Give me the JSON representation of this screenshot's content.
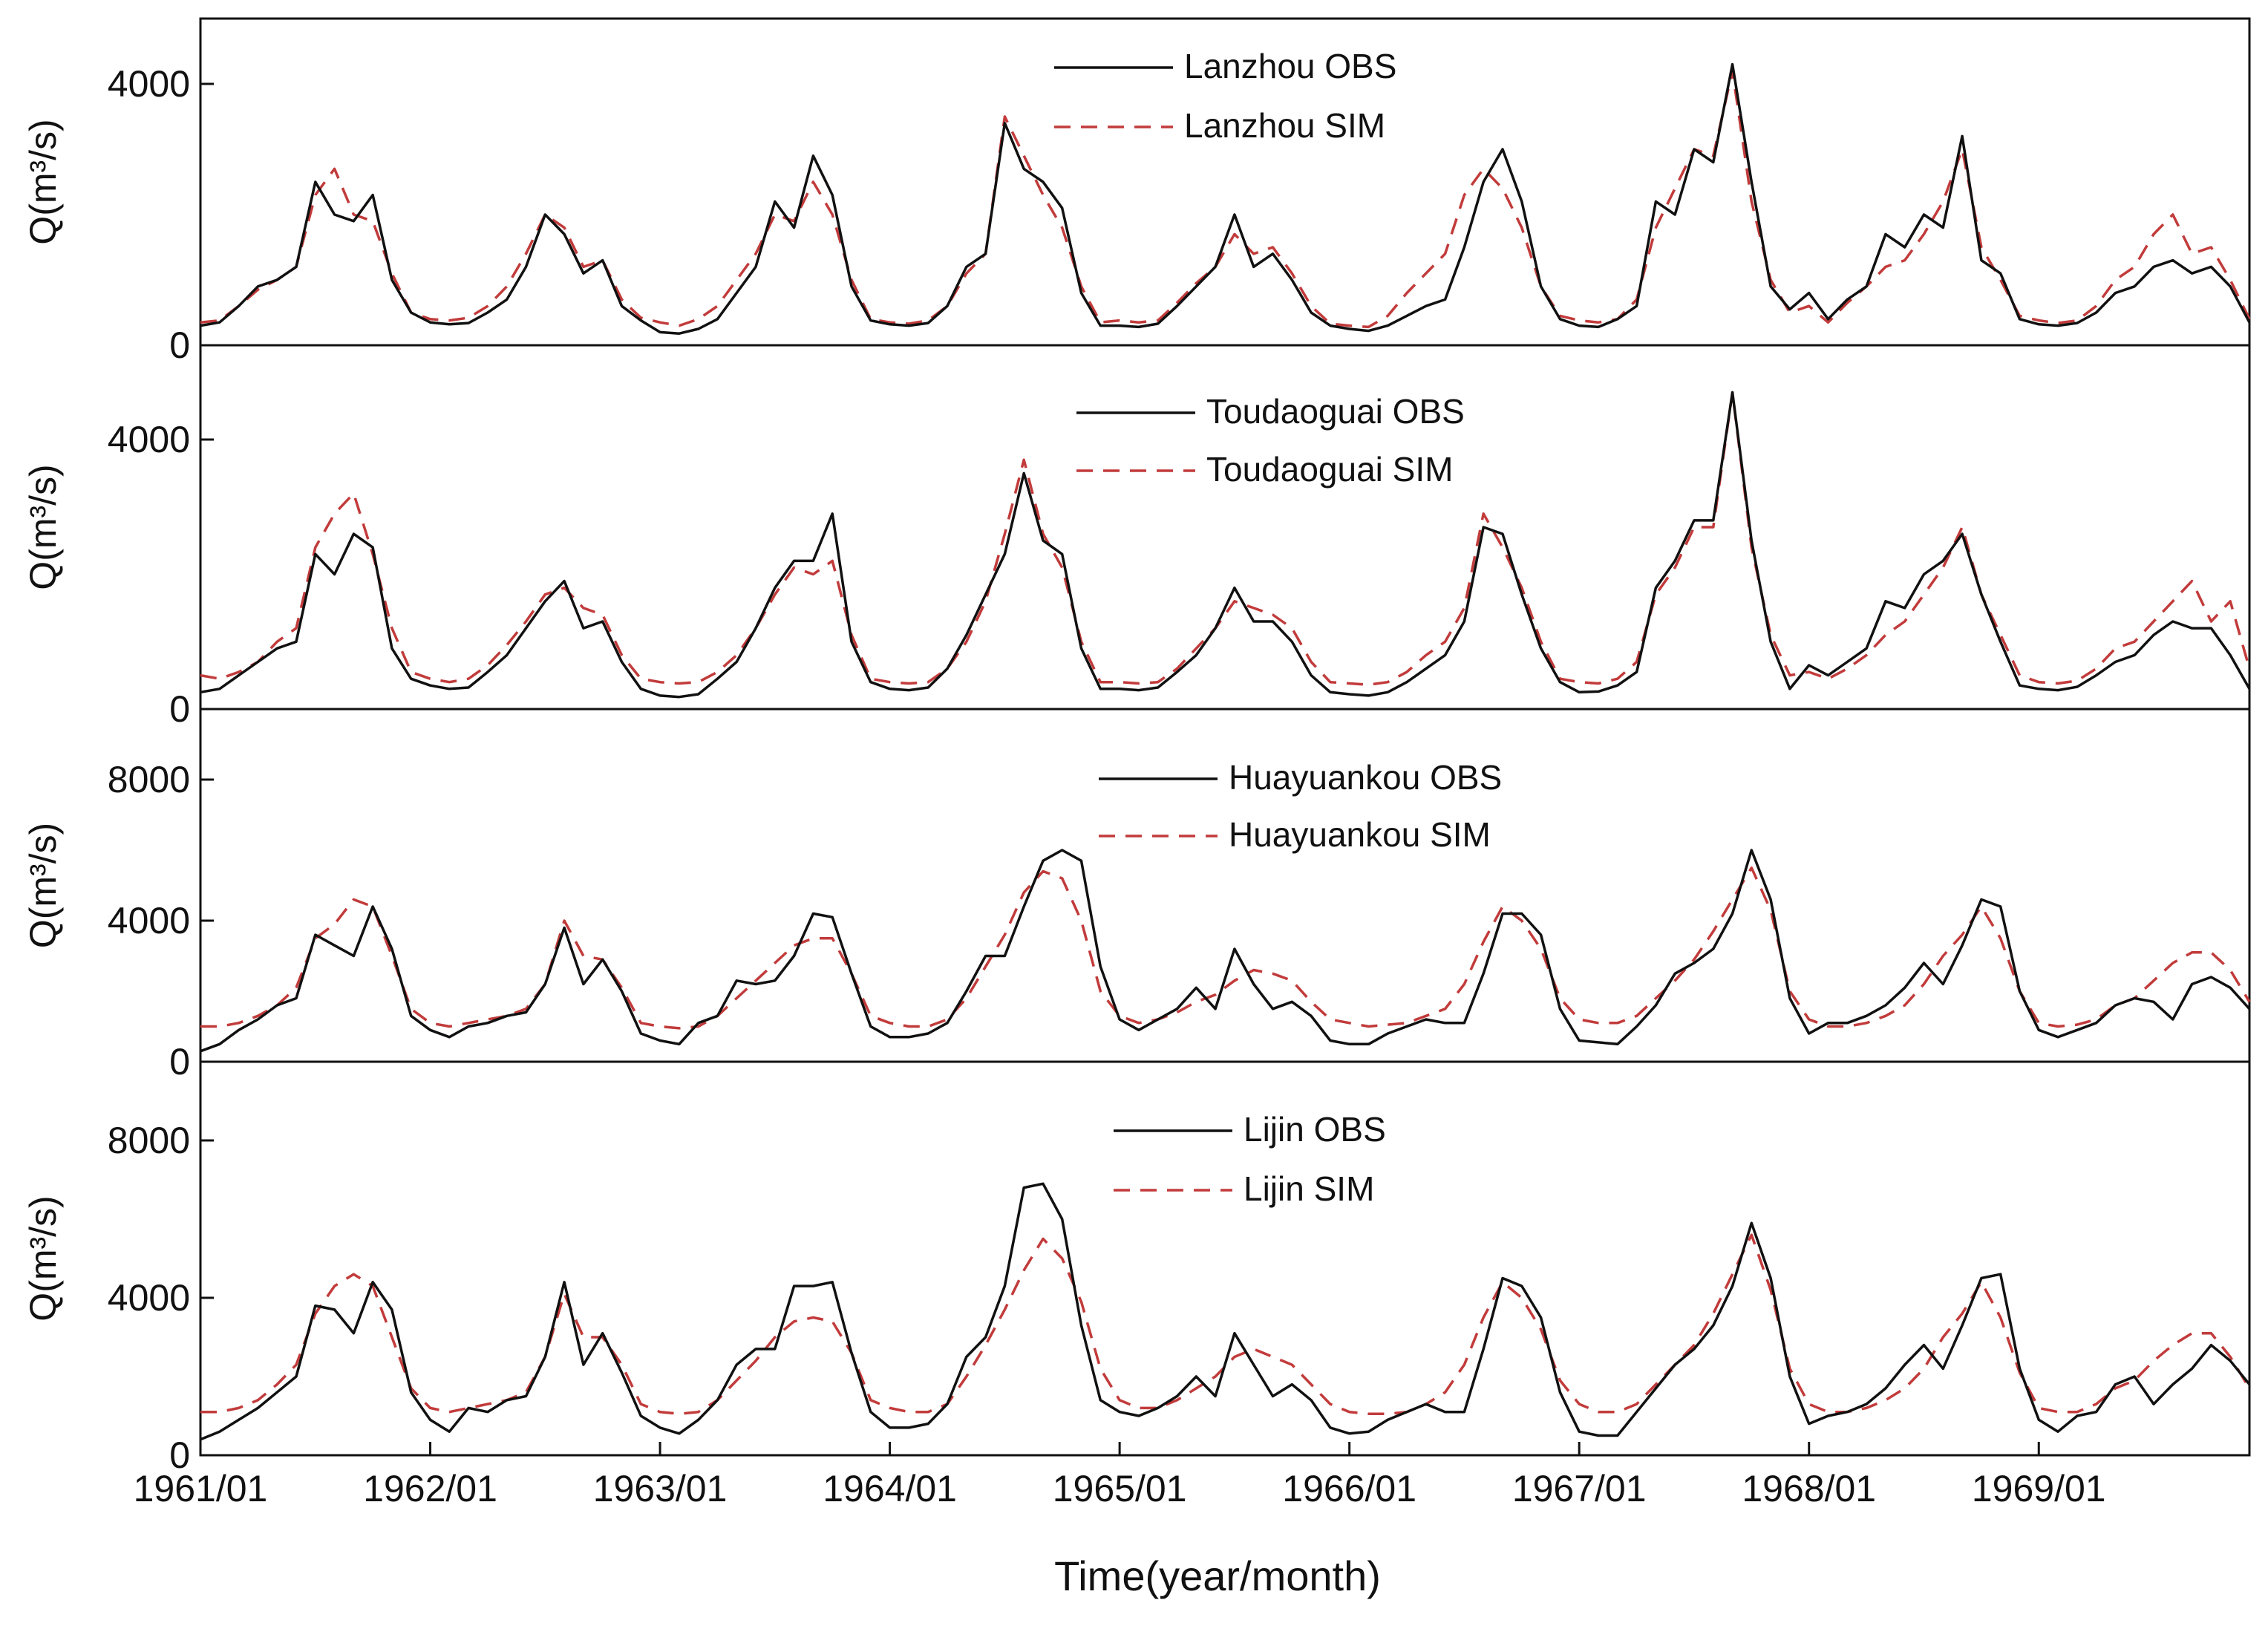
{
  "colors": {
    "obs": "#111111",
    "sim": "#c23b3b"
  },
  "xlabel": "Time(year/month)",
  "x_ticks": [
    "1961/01",
    "1962/01",
    "1963/01",
    "1964/01",
    "1965/01",
    "1966/01",
    "1967/01",
    "1968/01",
    "1969/01"
  ],
  "chart_data": [
    {
      "type": "line",
      "station": "Lanzhou",
      "ylabel": "Q(m³/s)",
      "ylim": [
        0,
        5000
      ],
      "yticks": [
        0,
        4000
      ],
      "x_range": [
        "1961/01",
        "1969/12"
      ],
      "legend": [
        "Lanzhou OBS",
        "Lanzhou SIM"
      ],
      "series": [
        {
          "name": "Lanzhou OBS",
          "values": [
            300,
            350,
            600,
            900,
            1000,
            1200,
            2500,
            2000,
            1900,
            2300,
            1000,
            500,
            350,
            320,
            340,
            500,
            700,
            1200,
            2000,
            1700,
            1100,
            1300,
            600,
            380,
            200,
            180,
            250,
            400,
            800,
            1200,
            2200,
            1800,
            2900,
            2300,
            900,
            380,
            320,
            300,
            340,
            600,
            1200,
            1400,
            3400,
            2700,
            2500,
            2100,
            800,
            300,
            300,
            280,
            330,
            600,
            900,
            1200,
            2000,
            1200,
            1400,
            1000,
            500,
            300,
            250,
            220,
            300,
            450,
            600,
            700,
            1500,
            2500,
            3000,
            2200,
            900,
            400,
            300,
            280,
            400,
            600,
            2200,
            2000,
            3000,
            2800,
            4300,
            2500,
            900,
            550,
            800,
            400,
            700,
            900,
            1700,
            1500,
            2000,
            1800,
            3200,
            1300,
            1100,
            400,
            320,
            300,
            340,
            500,
            800,
            900,
            1200,
            1300,
            1100,
            1200,
            900,
            350
          ]
        },
        {
          "name": "Lanzhou SIM",
          "values": [
            350,
            380,
            600,
            850,
            1000,
            1200,
            2300,
            2700,
            2000,
            1900,
            1100,
            500,
            400,
            380,
            420,
            600,
            900,
            1400,
            2000,
            1800,
            1200,
            1300,
            700,
            420,
            350,
            300,
            400,
            600,
            1000,
            1400,
            2000,
            1900,
            2500,
            2000,
            1000,
            400,
            350,
            330,
            380,
            600,
            1100,
            1400,
            3500,
            2900,
            2300,
            1800,
            900,
            350,
            380,
            350,
            380,
            650,
            950,
            1200,
            1700,
            1400,
            1500,
            1100,
            600,
            330,
            300,
            280,
            450,
            800,
            1100,
            1400,
            2300,
            2700,
            2400,
            1800,
            900,
            450,
            380,
            350,
            400,
            700,
            1800,
            2400,
            3000,
            2900,
            4200,
            2200,
            1000,
            500,
            600,
            350,
            650,
            900,
            1200,
            1300,
            1700,
            2200,
            3000,
            1500,
            1000,
            450,
            380,
            340,
            380,
            600,
            1000,
            1200,
            1700,
            2000,
            1400,
            1500,
            1000,
            400
          ]
        }
      ]
    },
    {
      "type": "line",
      "station": "Toudaoguai",
      "ylabel": "Q(m³/s)",
      "ylim": [
        0,
        5400
      ],
      "yticks": [
        0,
        4000
      ],
      "x_range": [
        "1961/01",
        "1969/12"
      ],
      "legend": [
        "Toudaoguai OBS",
        "Toudaoguai SIM"
      ],
      "series": [
        {
          "name": "Toudaoguai OBS",
          "values": [
            250,
            300,
            500,
            700,
            900,
            1000,
            2300,
            2000,
            2600,
            2400,
            900,
            450,
            350,
            300,
            320,
            550,
            800,
            1200,
            1600,
            1900,
            1200,
            1300,
            700,
            300,
            200,
            180,
            220,
            450,
            700,
            1200,
            1800,
            2200,
            2200,
            2900,
            1000,
            400,
            300,
            280,
            320,
            600,
            1100,
            1700,
            2300,
            3500,
            2500,
            2300,
            900,
            300,
            300,
            280,
            320,
            550,
            800,
            1200,
            1800,
            1300,
            1300,
            1000,
            500,
            250,
            220,
            200,
            250,
            400,
            600,
            800,
            1300,
            2700,
            2600,
            1700,
            900,
            400,
            250,
            260,
            350,
            550,
            1800,
            2200,
            2800,
            2800,
            4700,
            2500,
            1000,
            300,
            650,
            500,
            700,
            900,
            1600,
            1500,
            2000,
            2200,
            2600,
            1700,
            1000,
            350,
            300,
            280,
            330,
            500,
            700,
            800,
            1100,
            1300,
            1200,
            1200,
            800,
            300
          ]
        },
        {
          "name": "Toudaoguai SIM",
          "values": [
            500,
            450,
            550,
            700,
            1000,
            1200,
            2400,
            2900,
            3200,
            2300,
            1200,
            550,
            450,
            400,
            450,
            650,
            950,
            1300,
            1700,
            1800,
            1500,
            1400,
            800,
            450,
            400,
            380,
            400,
            550,
            800,
            1200,
            1700,
            2100,
            2000,
            2200,
            1100,
            450,
            400,
            380,
            400,
            600,
            1000,
            1600,
            2600,
            3700,
            2600,
            2100,
            1000,
            400,
            400,
            380,
            400,
            600,
            900,
            1200,
            1600,
            1500,
            1400,
            1200,
            700,
            400,
            380,
            360,
            400,
            550,
            800,
            1000,
            1500,
            2900,
            2400,
            1800,
            1000,
            450,
            400,
            380,
            450,
            700,
            1700,
            2100,
            2700,
            2700,
            4700,
            2400,
            1100,
            500,
            550,
            450,
            600,
            800,
            1100,
            1300,
            1700,
            2100,
            2700,
            1700,
            1100,
            500,
            400,
            380,
            420,
            600,
            900,
            1000,
            1300,
            1600,
            1900,
            1300,
            1600,
            600
          ]
        }
      ]
    },
    {
      "type": "line",
      "station": "Huayuankou",
      "ylabel": "Q(m³/s)",
      "ylim": [
        0,
        10000
      ],
      "yticks": [
        0,
        4000,
        8000
      ],
      "x_range": [
        "1961/01",
        "1969/12"
      ],
      "legend": [
        "Huayuankou OBS",
        "Huayuankou SIM"
      ],
      "series": [
        {
          "name": "Huayuankou OBS",
          "values": [
            300,
            500,
            900,
            1200,
            1600,
            1800,
            3600,
            3300,
            3000,
            4400,
            3200,
            1300,
            900,
            700,
            1000,
            1100,
            1300,
            1400,
            2200,
            3800,
            2200,
            2900,
            2000,
            800,
            600,
            500,
            1100,
            1300,
            2300,
            2200,
            2300,
            3000,
            4200,
            4100,
            2500,
            1000,
            700,
            700,
            800,
            1100,
            2000,
            3000,
            3000,
            4400,
            5700,
            6000,
            5700,
            2700,
            1200,
            900,
            1200,
            1500,
            2100,
            1500,
            3200,
            2200,
            1500,
            1700,
            1300,
            600,
            500,
            500,
            800,
            1000,
            1200,
            1100,
            1100,
            2500,
            4200,
            4200,
            3600,
            1500,
            600,
            550,
            500,
            1000,
            1600,
            2500,
            2800,
            3200,
            4200,
            6000,
            4600,
            1800,
            800,
            1100,
            1100,
            1300,
            1600,
            2100,
            2800,
            2200,
            3300,
            4600,
            4400,
            2000,
            900,
            700,
            900,
            1100,
            1600,
            1800,
            1700,
            1200,
            2200,
            2400,
            2100,
            1500
          ]
        },
        {
          "name": "Huayuankou SIM",
          "values": [
            1000,
            1000,
            1100,
            1300,
            1600,
            2100,
            3500,
            3900,
            4600,
            4400,
            3000,
            1500,
            1100,
            1000,
            1100,
            1200,
            1300,
            1500,
            2200,
            4000,
            3000,
            2900,
            2100,
            1100,
            1000,
            950,
            1000,
            1300,
            1800,
            2300,
            2800,
            3300,
            3500,
            3500,
            2500,
            1300,
            1100,
            1000,
            1000,
            1200,
            1800,
            2700,
            3600,
            4800,
            5400,
            5200,
            4000,
            2000,
            1300,
            1100,
            1200,
            1400,
            1700,
            1900,
            2300,
            2600,
            2500,
            2300,
            1700,
            1200,
            1100,
            1000,
            1050,
            1100,
            1300,
            1500,
            2200,
            3400,
            4400,
            4000,
            3200,
            1800,
            1200,
            1100,
            1100,
            1300,
            1800,
            2300,
            2900,
            3700,
            4600,
            5500,
            4300,
            2000,
            1200,
            1000,
            1000,
            1100,
            1300,
            1600,
            2200,
            3000,
            3600,
            4400,
            3500,
            2000,
            1100,
            1000,
            1050,
            1200,
            1600,
            1800,
            2300,
            2800,
            3100,
            3100,
            2600,
            1700
          ]
        }
      ]
    },
    {
      "type": "line",
      "station": "Lijin",
      "ylabel": "Q(m³/s)",
      "ylim": [
        0,
        10000
      ],
      "yticks": [
        0,
        4000,
        8000
      ],
      "x_range": [
        "1961/01",
        "1969/12"
      ],
      "legend": [
        "Lijin OBS",
        "Lijin SIM"
      ],
      "series": [
        {
          "name": "Lijin OBS",
          "values": [
            400,
            600,
            900,
            1200,
            1600,
            2000,
            3800,
            3700,
            3100,
            4400,
            3700,
            1600,
            900,
            600,
            1200,
            1100,
            1400,
            1500,
            2500,
            4400,
            2300,
            3100,
            2100,
            1000,
            700,
            550,
            900,
            1400,
            2300,
            2700,
            2700,
            4300,
            4300,
            4400,
            2600,
            1100,
            700,
            700,
            800,
            1300,
            2500,
            3000,
            4300,
            6800,
            6900,
            6000,
            3300,
            1400,
            1100,
            1000,
            1200,
            1500,
            2000,
            1500,
            3100,
            2300,
            1500,
            1800,
            1400,
            700,
            550,
            600,
            900,
            1100,
            1300,
            1100,
            1100,
            2700,
            4500,
            4300,
            3500,
            1600,
            600,
            500,
            500,
            1100,
            1700,
            2300,
            2700,
            3300,
            4300,
            5900,
            4500,
            2000,
            800,
            1000,
            1100,
            1300,
            1700,
            2300,
            2800,
            2200,
            3300,
            4500,
            4600,
            2200,
            900,
            600,
            1000,
            1100,
            1800,
            2000,
            1300,
            1800,
            2200,
            2800,
            2400,
            1800
          ]
        },
        {
          "name": "Lijin SIM",
          "values": [
            1100,
            1100,
            1200,
            1400,
            1800,
            2300,
            3600,
            4300,
            4600,
            4300,
            3000,
            1700,
            1200,
            1100,
            1200,
            1300,
            1400,
            1600,
            2500,
            4100,
            3000,
            3000,
            2300,
            1300,
            1100,
            1050,
            1100,
            1400,
            1900,
            2400,
            3000,
            3400,
            3500,
            3400,
            2600,
            1400,
            1200,
            1100,
            1100,
            1300,
            2000,
            2800,
            3700,
            4700,
            5500,
            5000,
            3900,
            2200,
            1400,
            1200,
            1200,
            1400,
            1700,
            2000,
            2500,
            2700,
            2500,
            2300,
            1800,
            1300,
            1100,
            1050,
            1050,
            1100,
            1300,
            1600,
            2300,
            3500,
            4400,
            4000,
            3200,
            1900,
            1300,
            1100,
            1100,
            1300,
            1800,
            2300,
            2800,
            3600,
            4600,
            5600,
            4200,
            2200,
            1300,
            1100,
            1100,
            1200,
            1400,
            1700,
            2200,
            3000,
            3600,
            4400,
            3500,
            2100,
            1200,
            1100,
            1100,
            1300,
            1700,
            1900,
            2400,
            2800,
            3100,
            3100,
            2500,
            1700
          ]
        }
      ]
    }
  ]
}
